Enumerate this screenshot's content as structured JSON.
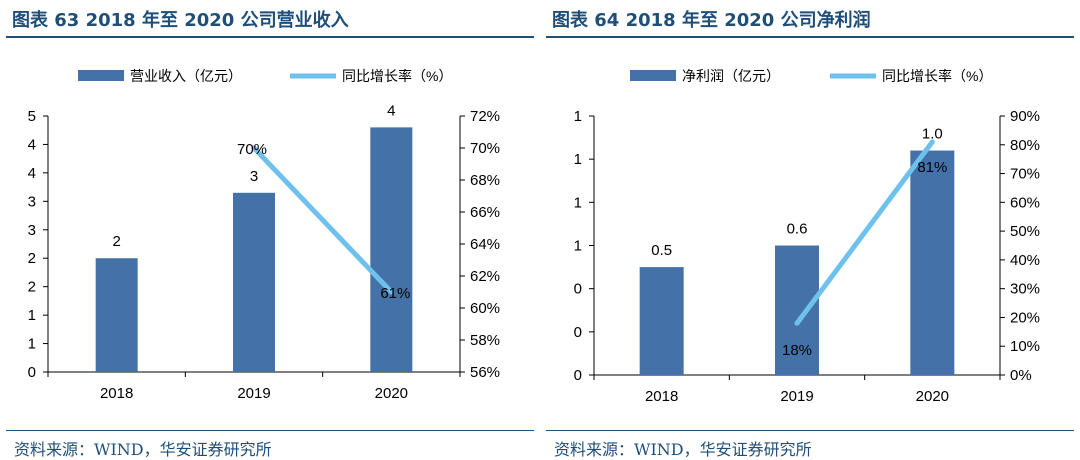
{
  "colors": {
    "bar": "#4472a8",
    "line": "#6ec1ec",
    "title": "#1f4e79"
  },
  "charts": [
    {
      "id": "left",
      "fig_title": "图表 63 2018 年至 2020 公司营业收入",
      "source": "资料来源：WIND，华安证券研究所",
      "legend_bar": "营业收入（亿元）",
      "legend_line": "同比增长率（%）",
      "categories": [
        "2018",
        "2019",
        "2020"
      ],
      "bar_values": [
        2.0,
        3.15,
        4.3
      ],
      "bar_labels": [
        "2",
        "3",
        "4"
      ],
      "line_values": [
        null,
        70,
        61
      ],
      "line_labels": [
        "",
        "70%",
        "61%"
      ],
      "left_ticks": [
        "0",
        "1",
        "1",
        "2",
        "2",
        "3",
        "3",
        "4",
        "4",
        "5"
      ],
      "right_ticks": [
        "56%",
        "58%",
        "60%",
        "62%",
        "64%",
        "66%",
        "68%",
        "70%",
        "72%"
      ]
    },
    {
      "id": "right",
      "fig_title": "图表 64 2018 年至 2020 公司净利润",
      "source": "资料来源：WIND，华安证券研究所",
      "legend_bar": "净利润（亿元）",
      "legend_line": "同比增长率（%）",
      "categories": [
        "2018",
        "2019",
        "2020"
      ],
      "bar_values": [
        0.5,
        0.6,
        1.04
      ],
      "bar_labels": [
        "0.5",
        "0.6",
        "1.0"
      ],
      "line_values": [
        null,
        18,
        81
      ],
      "line_labels": [
        "",
        "18%",
        "81%"
      ],
      "left_ticks": [
        "0",
        "0",
        "0",
        "1",
        "1",
        "1",
        "1"
      ],
      "right_ticks": [
        "0%",
        "10%",
        "20%",
        "30%",
        "40%",
        "50%",
        "60%",
        "70%",
        "80%",
        "90%"
      ]
    }
  ],
  "chart_data": [
    {
      "type": "bar",
      "title": "图表 63 2018 年至 2020 公司营业收入",
      "categories": [
        "2018",
        "2019",
        "2020"
      ],
      "series": [
        {
          "name": "营业收入（亿元）",
          "type": "bar",
          "axis": "left",
          "values": [
            2.0,
            3.15,
            4.3
          ]
        },
        {
          "name": "同比增长率（%）",
          "type": "line",
          "axis": "right",
          "values": [
            null,
            70,
            61
          ]
        }
      ],
      "ylim_left": [
        0,
        4.5
      ],
      "ylim_right": [
        56,
        72
      ],
      "legend": "top"
    },
    {
      "type": "bar",
      "title": "图表 64 2018 年至 2020 公司净利润",
      "categories": [
        "2018",
        "2019",
        "2020"
      ],
      "series": [
        {
          "name": "净利润（亿元）",
          "type": "bar",
          "axis": "left",
          "values": [
            0.5,
            0.6,
            1.04
          ]
        },
        {
          "name": "同比增长率（%）",
          "type": "line",
          "axis": "right",
          "values": [
            null,
            18,
            81
          ]
        }
      ],
      "ylim_left": [
        0,
        1.2
      ],
      "ylim_right": [
        0,
        90
      ],
      "legend": "top"
    }
  ]
}
